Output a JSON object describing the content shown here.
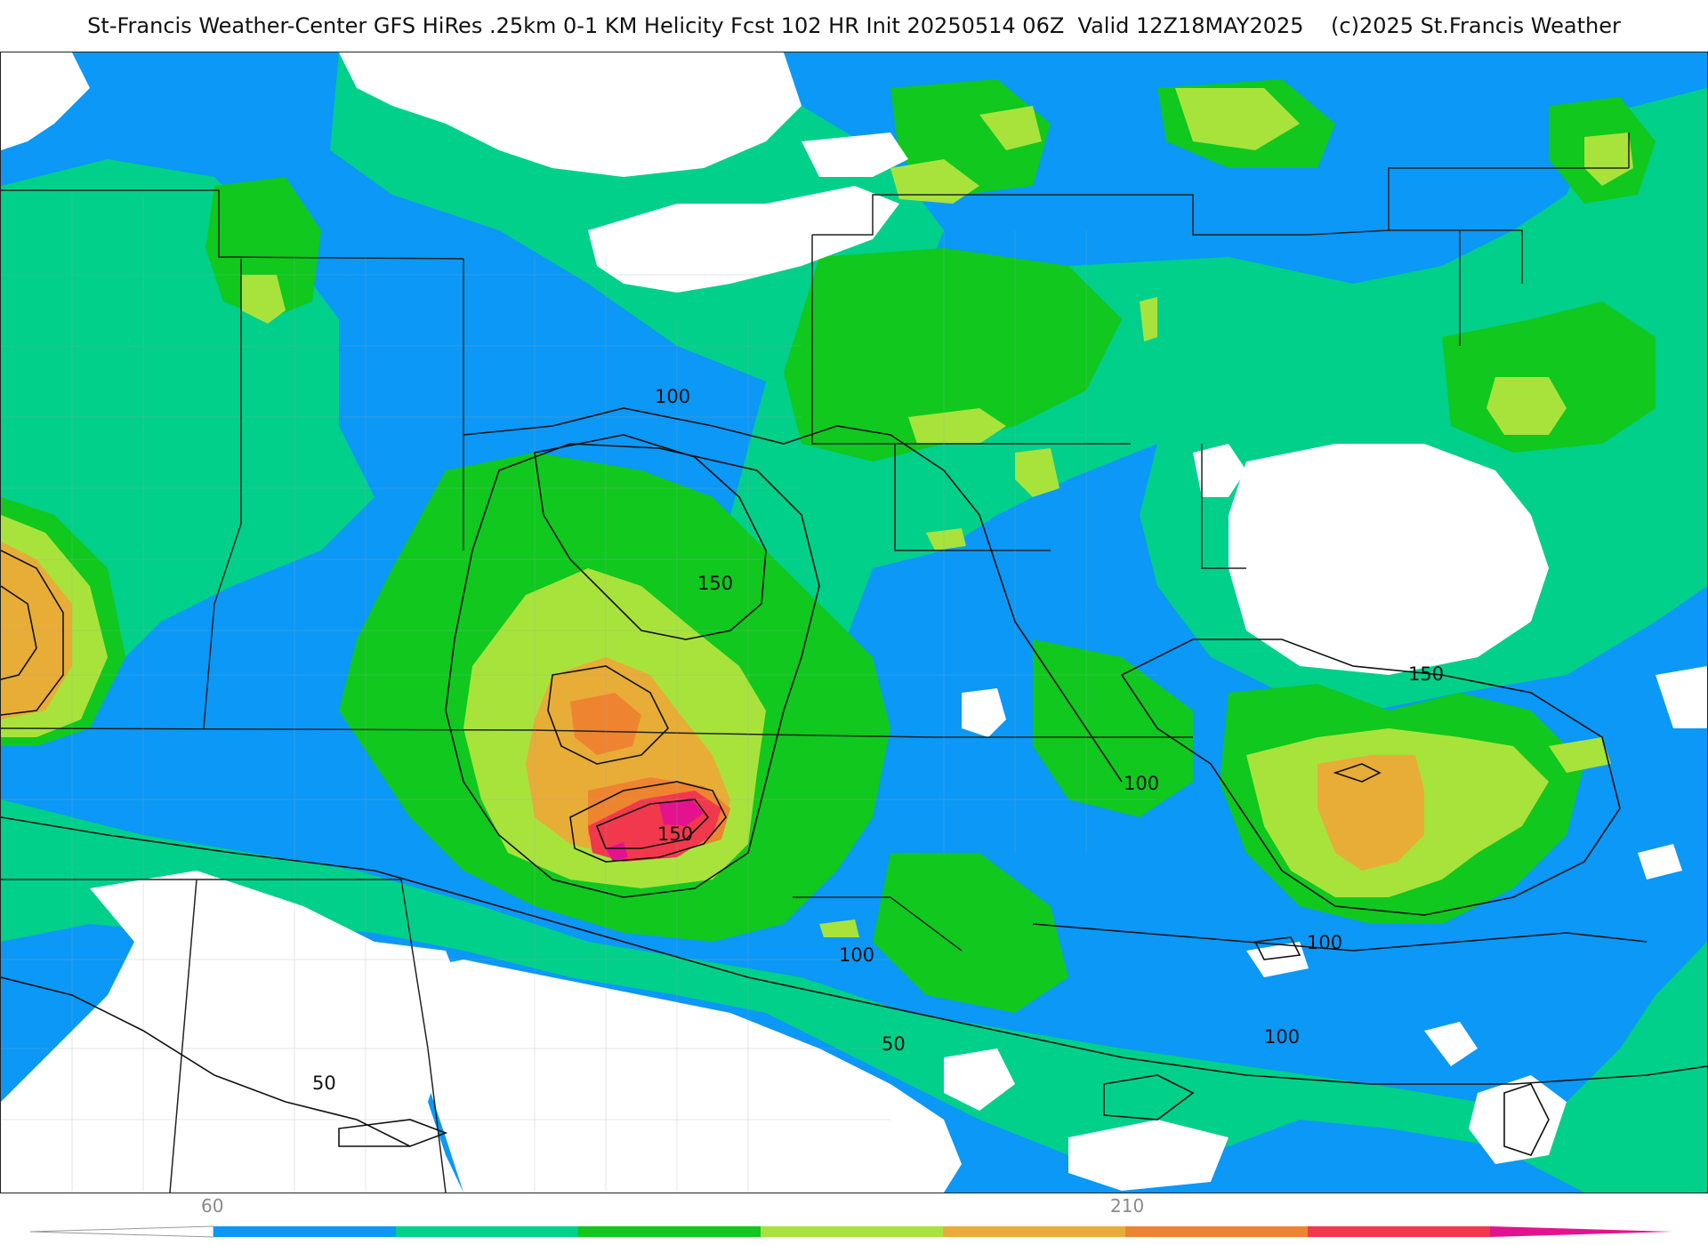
{
  "header": {
    "title": "St-Francis Weather-Center GFS HiRes .25km 0-1 KM Helicity Fcst 102 HR Init 20250514 06Z  Valid 12Z18MAY2025    (c)2025 St.Francis Weather"
  },
  "map": {
    "field": "0-1 km storm-relative helicity",
    "colors": {
      "white": "#ffffff",
      "blue": "#0b98f7",
      "teal": "#00d08a",
      "green": "#10c81e",
      "lime": "#a8e33c",
      "orange": "#e8ad36",
      "darkorange": "#ef8430",
      "red": "#f2384d",
      "magenta": "#e3138f",
      "border": "#222222",
      "county": "#9aa8a0"
    },
    "contour_labels": [
      {
        "text": "100"
      },
      {
        "text": "150"
      },
      {
        "text": "150"
      },
      {
        "text": "150"
      },
      {
        "text": "100"
      },
      {
        "text": "100"
      },
      {
        "text": "100"
      },
      {
        "text": "100"
      },
      {
        "text": "50"
      },
      {
        "text": "50"
      }
    ]
  },
  "colorbar": {
    "labels": [
      "60",
      "210"
    ],
    "colors": [
      "#0b98f7",
      "#00d08a",
      "#10c81e",
      "#a8e33c",
      "#e8ad36",
      "#ef8430",
      "#f2384d",
      "#e3138f"
    ]
  }
}
